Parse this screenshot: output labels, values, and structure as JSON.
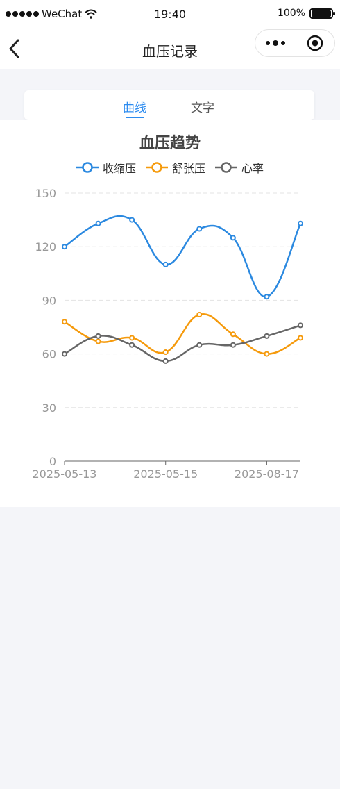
{
  "status_bar": {
    "carrier": "WeChat",
    "time": "19:40",
    "battery": "100%"
  },
  "nav": {
    "title": "血压记录"
  },
  "tabs": [
    {
      "label": "曲线",
      "active": true
    },
    {
      "label": "文字",
      "active": false
    }
  ],
  "colors": {
    "accent": "#2d8cf0",
    "systolic": "#2b89e0",
    "diastolic": "#f59a0c",
    "heart_rate": "#666666"
  },
  "chart_data": {
    "type": "line",
    "title": "血压趋势",
    "smooth": true,
    "x": [
      "2025-05-13",
      "",
      "",
      "2025-05-15",
      "",
      "",
      "2025-08-17",
      ""
    ],
    "x_tick_labels": [
      "2025-05-13",
      "2025-05-15",
      "2025-08-17"
    ],
    "ylim": [
      0,
      150
    ],
    "y_ticks": [
      "0",
      "30",
      "60",
      "90",
      "120",
      "150"
    ],
    "grid": true,
    "legend_position": "top",
    "series": [
      {
        "name": "收缩压",
        "color": "#2b89e0",
        "values": [
          120,
          133,
          135,
          110,
          130,
          125,
          92,
          133
        ]
      },
      {
        "name": "舒张压",
        "color": "#f59a0c",
        "values": [
          78,
          67,
          69,
          61,
          82,
          71,
          60,
          69
        ]
      },
      {
        "name": "心率",
        "color": "#666666",
        "values": [
          60,
          70,
          65,
          56,
          65,
          65,
          70,
          76
        ]
      }
    ]
  }
}
